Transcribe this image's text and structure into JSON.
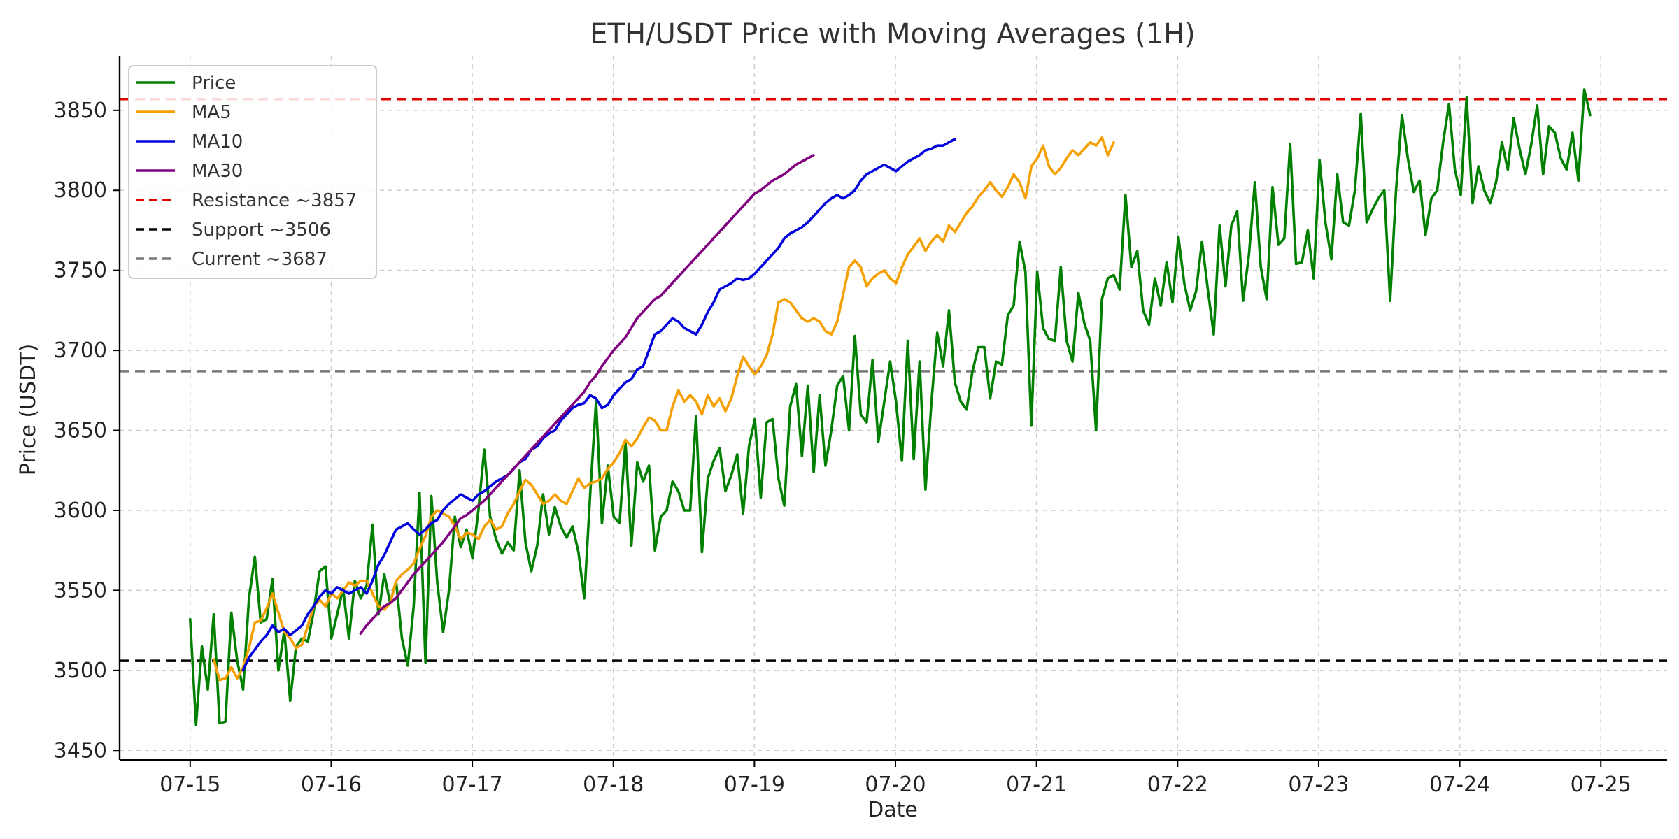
{
  "chart_data": {
    "type": "line",
    "title": "ETH/USDT Price with Moving Averages (1H)",
    "xlabel": "Date",
    "ylabel": "Price (USDT)",
    "x_ticks": [
      "07-15",
      "07-16",
      "07-17",
      "07-18",
      "07-19",
      "07-20",
      "07-21",
      "07-22",
      "07-23",
      "07-24",
      "07-25"
    ],
    "x_range": [
      -0.5,
      10.47
    ],
    "y_ticks": [
      3450,
      3500,
      3550,
      3600,
      3650,
      3700,
      3750,
      3800,
      3850
    ],
    "ylim": [
      3444,
      3884
    ],
    "grid": true,
    "legend_position": "top-left",
    "hlines": [
      {
        "name": "Resistance ~3857",
        "value": 3857,
        "color": "#e00000"
      },
      {
        "name": "Support ~3506",
        "value": 3506,
        "color": "#000000"
      },
      {
        "name": "Current ~3687",
        "value": 3687,
        "color": "#777777"
      }
    ],
    "series": [
      {
        "name": "Price",
        "color": "#008000",
        "x_start": 0,
        "x_step": 0.0417,
        "values": [
          3532,
          3466,
          3515,
          3488,
          3535,
          3467,
          3468,
          3536,
          3506,
          3488,
          3545,
          3571,
          3530,
          3532,
          3557,
          3500,
          3525,
          3481,
          3515,
          3520,
          3518,
          3537,
          3562,
          3565,
          3520,
          3535,
          3551,
          3520,
          3556,
          3545,
          3553,
          3591,
          3535,
          3560,
          3542,
          3556,
          3520,
          3503,
          3540,
          3611,
          3505,
          3609,
          3555,
          3524,
          3550,
          3596,
          3577,
          3588,
          3570,
          3600,
          3638,
          3596,
          3582,
          3573,
          3580,
          3575,
          3625,
          3580,
          3562,
          3578,
          3610,
          3585,
          3602,
          3590,
          3583,
          3590,
          3574,
          3545,
          3610,
          3668,
          3592,
          3628,
          3596,
          3592,
          3643,
          3578,
          3630,
          3618,
          3628,
          3575,
          3596,
          3600,
          3618,
          3612,
          3600,
          3600,
          3659,
          3574,
          3620,
          3631,
          3639,
          3612,
          3622,
          3635,
          3598,
          3640,
          3657,
          3608,
          3655,
          3657,
          3620,
          3603,
          3665,
          3679,
          3634,
          3678,
          3624,
          3672,
          3628,
          3650,
          3678,
          3684,
          3650,
          3709,
          3660,
          3655,
          3694,
          3643,
          3668,
          3693,
          3668,
          3631,
          3706,
          3632,
          3693,
          3613,
          3667,
          3711,
          3690,
          3725,
          3680,
          3668,
          3663,
          3687,
          3702,
          3702,
          3670,
          3693,
          3691,
          3722,
          3728,
          3768,
          3749,
          3653,
          3749,
          3714,
          3707,
          3706,
          3752,
          3706,
          3693,
          3736,
          3717,
          3706,
          3650,
          3732,
          3745,
          3747,
          3738,
          3797,
          3752,
          3762,
          3725,
          3716,
          3745,
          3728,
          3755,
          3730,
          3771,
          3742,
          3725,
          3737,
          3768,
          3738,
          3710,
          3778,
          3740,
          3778,
          3787,
          3731,
          3760,
          3805,
          3752,
          3732,
          3802,
          3766,
          3770,
          3829,
          3754,
          3755,
          3775,
          3745,
          3819,
          3780,
          3757,
          3810,
          3780,
          3778,
          3800,
          3848,
          3780,
          3788,
          3795,
          3800,
          3731,
          3800,
          3847,
          3820,
          3799,
          3806,
          3772,
          3795,
          3800,
          3830,
          3854,
          3813,
          3797,
          3858,
          3792,
          3815,
          3800,
          3792,
          3805,
          3830,
          3813,
          3845,
          3826,
          3810,
          3829,
          3853,
          3810,
          3840,
          3836,
          3820,
          3813,
          3836,
          3806,
          3863,
          3847
        ]
      },
      {
        "name": "MA5",
        "color": "#f5a000",
        "x_start": 0.167,
        "x_step": 0.0417,
        "values": [
          3507,
          3494,
          3495,
          3502,
          3495,
          3502,
          3514,
          3530,
          3531,
          3539,
          3548,
          3536,
          3524,
          3520,
          3514,
          3516,
          3528,
          3540,
          3544,
          3540,
          3548,
          3545,
          3550,
          3555,
          3553,
          3556,
          3556,
          3548,
          3540,
          3538,
          3542,
          3556,
          3560,
          3563,
          3567,
          3576,
          3584,
          3596,
          3600,
          3598,
          3596,
          3590,
          3582,
          3586,
          3585,
          3582,
          3590,
          3594,
          3588,
          3590,
          3598,
          3604,
          3612,
          3619,
          3616,
          3610,
          3604,
          3606,
          3610,
          3606,
          3604,
          3612,
          3620,
          3614,
          3617,
          3618,
          3620,
          3626,
          3630,
          3636,
          3644,
          3640,
          3645,
          3652,
          3658,
          3656,
          3650,
          3650,
          3665,
          3675,
          3668,
          3672,
          3668,
          3660,
          3672,
          3665,
          3670,
          3662,
          3670,
          3684,
          3696,
          3690,
          3685,
          3690,
          3697,
          3710,
          3730,
          3732,
          3730,
          3725,
          3720,
          3718,
          3720,
          3718,
          3712,
          3710,
          3718,
          3735,
          3752,
          3756,
          3752,
          3740,
          3745,
          3748,
          3750,
          3745,
          3742,
          3752,
          3760,
          3765,
          3770,
          3762,
          3768,
          3772,
          3768,
          3778,
          3774,
          3780,
          3786,
          3790,
          3796,
          3800,
          3805,
          3800,
          3796,
          3802,
          3810,
          3805,
          3795,
          3815,
          3820,
          3828,
          3815,
          3810,
          3814,
          3820,
          3825,
          3822,
          3826,
          3830,
          3828,
          3833,
          3822,
          3830
        ]
      },
      {
        "name": "MA10",
        "color": "#0000dd",
        "x_start": 0.375,
        "x_step": 0.0417,
        "values": [
          3500,
          3508,
          3513,
          3518,
          3522,
          3528,
          3524,
          3526,
          3522,
          3525,
          3528,
          3535,
          3540,
          3546,
          3550,
          3548,
          3552,
          3550,
          3548,
          3550,
          3552,
          3548,
          3556,
          3566,
          3572,
          3580,
          3588,
          3590,
          3592,
          3588,
          3585,
          3588,
          3592,
          3594,
          3600,
          3604,
          3607,
          3610,
          3608,
          3606,
          3610,
          3612,
          3615,
          3618,
          3620,
          3622,
          3626,
          3630,
          3632,
          3638,
          3640,
          3645,
          3648,
          3650,
          3656,
          3660,
          3664,
          3666,
          3667,
          3672,
          3670,
          3664,
          3666,
          3672,
          3676,
          3680,
          3682,
          3688,
          3690,
          3700,
          3710,
          3712,
          3716,
          3720,
          3718,
          3714,
          3712,
          3710,
          3716,
          3724,
          3730,
          3738,
          3740,
          3742,
          3745,
          3744,
          3745,
          3748,
          3752,
          3756,
          3760,
          3764,
          3770,
          3773,
          3775,
          3777,
          3780,
          3784,
          3788,
          3792,
          3795,
          3797,
          3795,
          3797,
          3800,
          3806,
          3810,
          3812,
          3814,
          3816,
          3814,
          3812,
          3815,
          3818,
          3820,
          3822,
          3825,
          3826,
          3828,
          3828,
          3830,
          3832
        ]
      },
      {
        "name": "MA30",
        "color": "#800080",
        "x_start": 1.208,
        "x_step": 0.0417,
        "values": [
          3523,
          3528,
          3532,
          3536,
          3540,
          3542,
          3545,
          3550,
          3555,
          3560,
          3564,
          3568,
          3572,
          3576,
          3580,
          3585,
          3590,
          3595,
          3597,
          3600,
          3603,
          3606,
          3610,
          3614,
          3618,
          3622,
          3626,
          3630,
          3634,
          3638,
          3642,
          3646,
          3650,
          3654,
          3658,
          3662,
          3666,
          3670,
          3674,
          3680,
          3684,
          3690,
          3695,
          3700,
          3704,
          3708,
          3714,
          3720,
          3724,
          3728,
          3732,
          3734,
          3738,
          3742,
          3746,
          3750,
          3754,
          3758,
          3762,
          3766,
          3770,
          3774,
          3778,
          3782,
          3786,
          3790,
          3794,
          3798,
          3800,
          3803,
          3806,
          3808,
          3810,
          3813,
          3816,
          3818,
          3820,
          3822
        ]
      }
    ]
  }
}
